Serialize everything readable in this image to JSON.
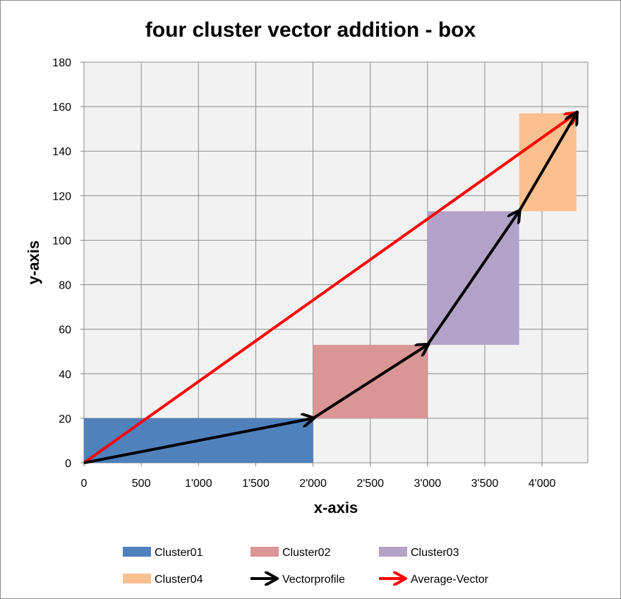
{
  "chart_data": {
    "type": "box-vector",
    "title": "four cluster vector addition - box",
    "xlabel": "x-axis",
    "ylabel": "y-axis",
    "xlim": [
      0,
      4400
    ],
    "ylim": [
      0,
      180
    ],
    "x_ticks": [
      0,
      500,
      1000,
      1500,
      2000,
      2500,
      3000,
      3500,
      4000
    ],
    "x_tick_labels": [
      "0",
      "500",
      "1'000",
      "1'500",
      "2'000",
      "2'500",
      "3'000",
      "3'500",
      "4'000"
    ],
    "y_ticks": [
      0,
      20,
      40,
      60,
      80,
      100,
      120,
      140,
      160,
      180
    ],
    "y_tick_labels": [
      "0",
      "20",
      "40",
      "60",
      "80",
      "100",
      "120",
      "140",
      "160",
      "180"
    ],
    "grid": true,
    "plot_background": "#f2f2f2",
    "grid_color": "#8c8c8c",
    "legend_position": "bottom",
    "boxes": [
      {
        "name": "Cluster01",
        "x0": 0,
        "x1": 2000,
        "y0": 0,
        "y1": 20,
        "color": "#4f81bd"
      },
      {
        "name": "Cluster02",
        "x0": 2000,
        "x1": 3000,
        "y0": 20,
        "y1": 53,
        "color": "#d99694"
      },
      {
        "name": "Cluster03",
        "x0": 3000,
        "x1": 3800,
        "y0": 53,
        "y1": 113,
        "color": "#b3a2c7"
      },
      {
        "name": "Cluster04",
        "x0": 3800,
        "x1": 4300,
        "y0": 113,
        "y1": 157,
        "color": "#fac090"
      }
    ],
    "vectorprofile": {
      "name": "Vectorprofile",
      "color": "#000000",
      "points": [
        [
          0,
          0
        ],
        [
          2000,
          20
        ],
        [
          3000,
          53
        ],
        [
          3800,
          113
        ],
        [
          4300,
          157
        ]
      ]
    },
    "average_vector": {
      "name": "Average-Vector",
      "color": "#ff0000",
      "points": [
        [
          0,
          0
        ],
        [
          4300,
          157
        ]
      ]
    },
    "legend": [
      {
        "label": "Cluster01",
        "kind": "box",
        "color": "#4f81bd"
      },
      {
        "label": "Cluster02",
        "kind": "box",
        "color": "#d99694"
      },
      {
        "label": "Cluster03",
        "kind": "box",
        "color": "#b3a2c7"
      },
      {
        "label": "Cluster04",
        "kind": "box",
        "color": "#fac090"
      },
      {
        "label": "Vectorprofile",
        "kind": "arrow",
        "color": "#000000"
      },
      {
        "label": "Average-Vector",
        "kind": "arrow",
        "color": "#ff0000"
      }
    ]
  }
}
